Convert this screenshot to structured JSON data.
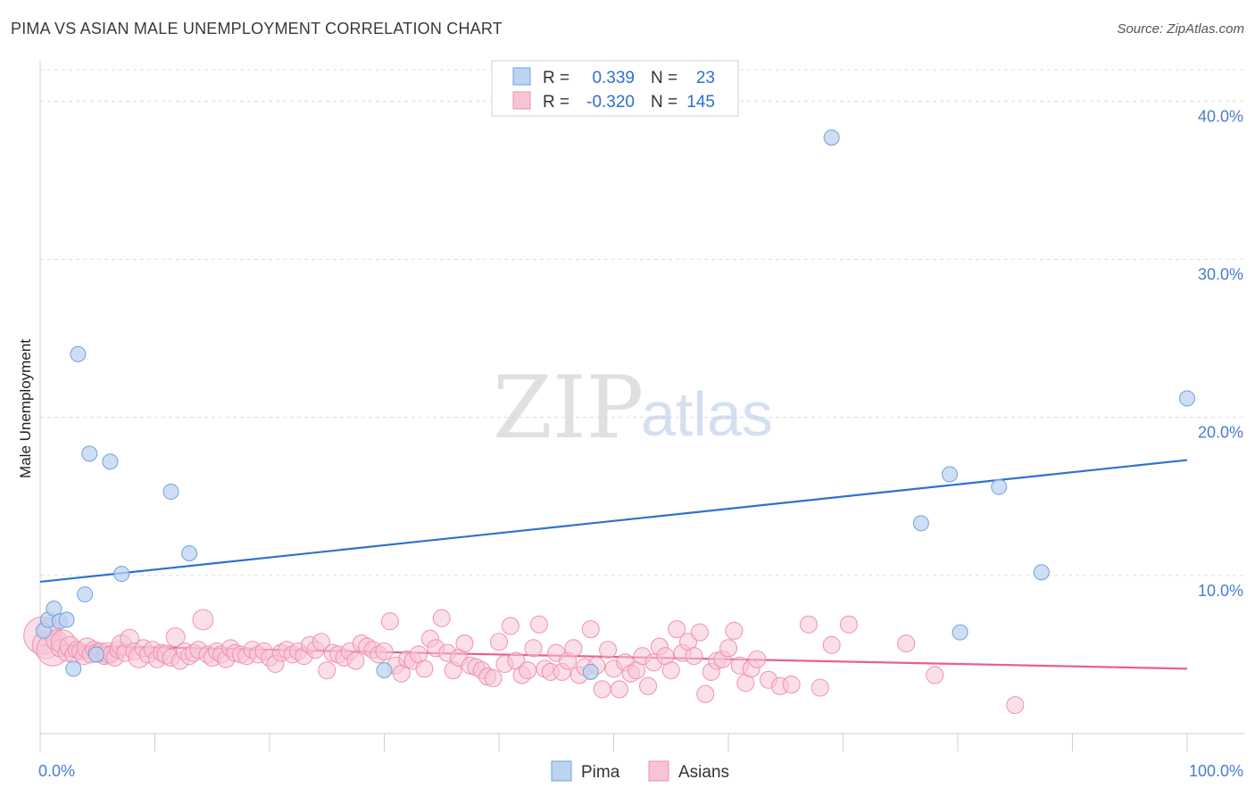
{
  "title": "PIMA VS ASIAN MALE UNEMPLOYMENT CORRELATION CHART",
  "source": "Source: ZipAtlas.com",
  "watermark": {
    "part1": "ZIP",
    "part2": "atlas"
  },
  "legend": {
    "rows": [
      {
        "r_label": "R =",
        "r_value": "0.339",
        "n_label": "N =",
        "n_value": "23"
      },
      {
        "r_label": "R =",
        "r_value": "-0.320",
        "n_label": "N =",
        "n_value": "145"
      }
    ]
  },
  "chart_data": {
    "type": "scatter",
    "ylabel": "Male Unemployment",
    "xlim": [
      0,
      100
    ],
    "ylim": [
      0,
      42
    ],
    "x_tick_labels": [
      {
        "value": 0,
        "label": "0.0%"
      },
      {
        "value": 100,
        "label": "100.0%"
      }
    ],
    "y_tick_labels": [
      {
        "value": 10,
        "label": "10.0%"
      },
      {
        "value": 20,
        "label": "20.0%"
      },
      {
        "value": 30,
        "label": "30.0%"
      },
      {
        "value": 40,
        "label": "40.0%"
      }
    ],
    "grid": true,
    "legend_position": "top-center",
    "series": [
      {
        "name": "Pima",
        "color": "#6fa0dc",
        "fill": "#bcd3f2",
        "trend": {
          "x": [
            0,
            100
          ],
          "y": [
            9.6,
            17.3
          ],
          "color": "#2f72d0"
        },
        "points": [
          [
            0.3,
            6.5
          ],
          [
            0.7,
            7.2
          ],
          [
            1.2,
            7.9
          ],
          [
            1.7,
            7.1
          ],
          [
            2.3,
            7.2
          ],
          [
            2.9,
            4.1
          ],
          [
            3.3,
            24.0
          ],
          [
            3.9,
            8.8
          ],
          [
            4.3,
            17.7
          ],
          [
            4.9,
            5.0
          ],
          [
            6.1,
            17.2
          ],
          [
            7.1,
            10.1
          ],
          [
            11.4,
            15.3
          ],
          [
            13.0,
            11.4
          ],
          [
            30.0,
            4.0
          ],
          [
            48.0,
            3.9
          ],
          [
            69.0,
            37.7
          ],
          [
            76.8,
            13.3
          ],
          [
            79.3,
            16.4
          ],
          [
            80.2,
            6.4
          ],
          [
            83.6,
            15.6
          ],
          [
            87.3,
            10.2
          ],
          [
            100.0,
            21.2
          ]
        ]
      },
      {
        "name": "Asians",
        "color": "#ee8fae",
        "fill": "#f8c4d5",
        "trend": {
          "x": [
            0,
            100
          ],
          "y": [
            5.6,
            4.1
          ],
          "color": "#e86090"
        },
        "points": [
          [
            0.2,
            6.2,
            2.2
          ],
          [
            0.5,
            5.6,
            1.6
          ],
          [
            0.8,
            6.6,
            1.3
          ],
          [
            1.1,
            5.3,
            1.9
          ],
          [
            1.4,
            5.9,
            1.2
          ],
          [
            1.7,
            5.4,
            1.0
          ],
          [
            2.0,
            5.8,
            1.4
          ],
          [
            2.3,
            5.1,
            1.0
          ],
          [
            2.6,
            5.5,
            1.2
          ],
          [
            2.9,
            5.0,
            1.0
          ],
          [
            3.2,
            5.3,
            1.0
          ],
          [
            3.5,
            5.2,
            1.0
          ],
          [
            3.8,
            4.9,
            1.0
          ],
          [
            4.1,
            5.4,
            1.2
          ],
          [
            4.4,
            5.0,
            1.0
          ],
          [
            4.7,
            5.3,
            1.0
          ],
          [
            5.0,
            5.1,
            1.1
          ],
          [
            5.3,
            5.2,
            1.0
          ],
          [
            5.6,
            4.9,
            1.0
          ],
          [
            5.9,
            5.1,
            1.2
          ],
          [
            6.2,
            5.0,
            1.0
          ],
          [
            6.5,
            4.8,
            1.0
          ],
          [
            6.8,
            5.3,
            1.0
          ],
          [
            7.1,
            5.6,
            1.2
          ],
          [
            7.4,
            5.1,
            1.0
          ],
          [
            7.8,
            6.0,
            1.1
          ],
          [
            8.2,
            5.2,
            1.0
          ],
          [
            8.6,
            4.8,
            1.2
          ],
          [
            9.0,
            5.4,
            1.0
          ],
          [
            9.4,
            5.0,
            1.0
          ],
          [
            9.8,
            5.3,
            1.0
          ],
          [
            10.2,
            4.7,
            1.0
          ],
          [
            10.6,
            5.1,
            1.0
          ],
          [
            11.0,
            5.0,
            1.1
          ],
          [
            11.4,
            4.8,
            1.0
          ],
          [
            11.8,
            6.1,
            1.1
          ],
          [
            12.2,
            4.6,
            1.0
          ],
          [
            12.6,
            5.2,
            1.0
          ],
          [
            13.0,
            4.9,
            1.0
          ],
          [
            13.4,
            5.1,
            1.0
          ],
          [
            13.8,
            5.3,
            1.0
          ],
          [
            14.2,
            7.2,
            1.2
          ],
          [
            14.6,
            5.0,
            1.0
          ],
          [
            15.0,
            4.8,
            1.0
          ],
          [
            15.4,
            5.2,
            1.0
          ],
          [
            15.8,
            5.0,
            1.0
          ],
          [
            16.2,
            4.7,
            1.0
          ],
          [
            16.6,
            5.4,
            1.0
          ],
          [
            17.0,
            5.1,
            1.0
          ],
          [
            17.5,
            5.0,
            1.0
          ],
          [
            18.0,
            4.9,
            1.0
          ],
          [
            18.5,
            5.3,
            1.0
          ],
          [
            19.0,
            5.0,
            1.0
          ],
          [
            19.5,
            5.2,
            1.0
          ],
          [
            20.0,
            4.8,
            1.0
          ],
          [
            20.5,
            4.4,
            1.0
          ],
          [
            21.0,
            5.1,
            1.0
          ],
          [
            21.5,
            5.3,
            1.0
          ],
          [
            22.0,
            5.0,
            1.0
          ],
          [
            22.5,
            5.2,
            1.0
          ],
          [
            23.0,
            4.9,
            1.0
          ],
          [
            23.5,
            5.6,
            1.0
          ],
          [
            24.0,
            5.3,
            1.0
          ],
          [
            24.5,
            5.8,
            1.0
          ],
          [
            25.0,
            4.0,
            1.0
          ],
          [
            25.5,
            5.1,
            1.0
          ],
          [
            26.0,
            5.0,
            1.0
          ],
          [
            26.5,
            4.8,
            1.0
          ],
          [
            27.0,
            5.2,
            1.0
          ],
          [
            27.5,
            4.6,
            1.0
          ],
          [
            28.0,
            5.7,
            1.0
          ],
          [
            28.5,
            5.5,
            1.0
          ],
          [
            29.0,
            5.3,
            1.0
          ],
          [
            29.5,
            5.0,
            1.0
          ],
          [
            30.0,
            5.2,
            1.0
          ],
          [
            30.5,
            7.1,
            1.0
          ],
          [
            31.0,
            4.3,
            1.0
          ],
          [
            31.5,
            3.8,
            1.0
          ],
          [
            32.0,
            4.7,
            1.0
          ],
          [
            32.5,
            4.6,
            1.0
          ],
          [
            33.0,
            5.0,
            1.0
          ],
          [
            33.5,
            4.1,
            1.0
          ],
          [
            34.0,
            6.0,
            1.0
          ],
          [
            34.5,
            5.4,
            1.0
          ],
          [
            35.0,
            7.3,
            1.0
          ],
          [
            35.5,
            5.1,
            1.0
          ],
          [
            36.0,
            4.0,
            1.0
          ],
          [
            36.5,
            4.8,
            1.0
          ],
          [
            37.0,
            5.7,
            1.0
          ],
          [
            37.5,
            4.3,
            1.0
          ],
          [
            38.0,
            4.2,
            1.0
          ],
          [
            38.5,
            4.0,
            1.0
          ],
          [
            39.0,
            3.6,
            1.0
          ],
          [
            39.5,
            3.5,
            1.0
          ],
          [
            40.0,
            5.8,
            1.0
          ],
          [
            40.5,
            4.4,
            1.0
          ],
          [
            41.0,
            6.8,
            1.0
          ],
          [
            41.5,
            4.6,
            1.0
          ],
          [
            42.0,
            3.7,
            1.0
          ],
          [
            42.5,
            4.0,
            1.0
          ],
          [
            43.0,
            5.4,
            1.0
          ],
          [
            43.5,
            6.9,
            1.0
          ],
          [
            44.0,
            4.1,
            1.0
          ],
          [
            44.5,
            3.9,
            1.0
          ],
          [
            45.0,
            5.1,
            1.0
          ],
          [
            45.5,
            3.9,
            1.0
          ],
          [
            46.0,
            4.6,
            1.0
          ],
          [
            46.5,
            5.4,
            1.0
          ],
          [
            47.0,
            3.7,
            1.0
          ],
          [
            47.5,
            4.2,
            1.0
          ],
          [
            48.0,
            6.6,
            1.0
          ],
          [
            48.5,
            4.3,
            1.0
          ],
          [
            49.0,
            2.8,
            1.0
          ],
          [
            49.5,
            5.3,
            1.0
          ],
          [
            50.0,
            4.1,
            1.0
          ],
          [
            50.5,
            2.8,
            1.0
          ],
          [
            51.0,
            4.5,
            1.0
          ],
          [
            51.5,
            3.8,
            1.0
          ],
          [
            52.0,
            4.0,
            1.0
          ],
          [
            52.5,
            4.9,
            1.0
          ],
          [
            53.0,
            3.0,
            1.0
          ],
          [
            53.5,
            4.5,
            1.0
          ],
          [
            54.0,
            5.5,
            1.0
          ],
          [
            54.5,
            4.9,
            1.0
          ],
          [
            55.0,
            4.0,
            1.0
          ],
          [
            55.5,
            6.6,
            1.0
          ],
          [
            56.0,
            5.1,
            1.0
          ],
          [
            56.5,
            5.8,
            1.0
          ],
          [
            57.0,
            4.9,
            1.0
          ],
          [
            57.5,
            6.4,
            1.0
          ],
          [
            58.0,
            2.5,
            1.0
          ],
          [
            58.5,
            3.9,
            1.0
          ],
          [
            59.0,
            4.6,
            1.0
          ],
          [
            59.5,
            4.7,
            1.0
          ],
          [
            60.0,
            5.4,
            1.0
          ],
          [
            60.5,
            6.5,
            1.0
          ],
          [
            61.0,
            4.3,
            1.0
          ],
          [
            61.5,
            3.2,
            1.0
          ],
          [
            62.0,
            4.1,
            1.0
          ],
          [
            62.5,
            4.7,
            1.0
          ],
          [
            63.5,
            3.4,
            1.0
          ],
          [
            64.5,
            3.0,
            1.0
          ],
          [
            65.5,
            3.1,
            1.0
          ],
          [
            67.0,
            6.9,
            1.0
          ],
          [
            68.0,
            2.9,
            1.0
          ],
          [
            69.0,
            5.6,
            1.0
          ],
          [
            70.5,
            6.9,
            1.0
          ],
          [
            75.5,
            5.7,
            1.0
          ],
          [
            78.0,
            3.7,
            1.0
          ],
          [
            85.0,
            1.8,
            1.0
          ]
        ]
      }
    ]
  }
}
